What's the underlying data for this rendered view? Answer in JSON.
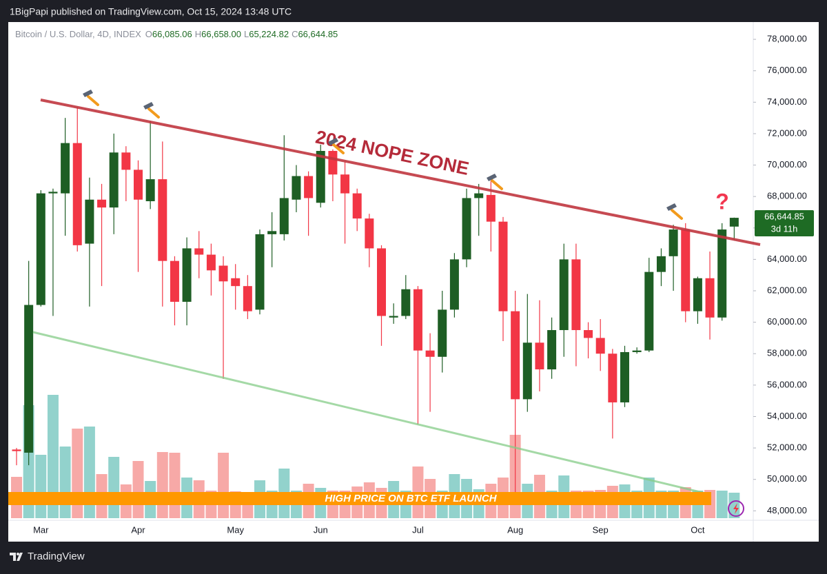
{
  "header": {
    "published": "1BigPapi published on TradingView.com, Oct 15, 2024 13:48 UTC"
  },
  "chart_data": {
    "type": "candlestick",
    "title": "Bitcoin / U.S. Dollar, 4D, INDEX",
    "ohlc_legend": [
      {
        "label": "O",
        "value": "66,085.06"
      },
      {
        "label": "H",
        "value": "66,658.00"
      },
      {
        "label": "L",
        "value": "65,224.82"
      },
      {
        "label": "C",
        "value": "66,644.85"
      }
    ],
    "categories": [
      null,
      null,
      "Mar",
      null,
      null,
      null,
      null,
      null,
      null,
      null,
      "Apr",
      null,
      null,
      null,
      null,
      null,
      null,
      null,
      "May",
      null,
      null,
      null,
      null,
      null,
      null,
      "Jun",
      null,
      null,
      null,
      null,
      null,
      null,
      null,
      "Jul",
      null,
      null,
      null,
      null,
      null,
      null,
      null,
      "Aug",
      null,
      null,
      null,
      null,
      null,
      null,
      "Sep",
      null,
      null,
      null,
      null,
      null,
      null,
      null,
      "Oct",
      null,
      null,
      null
    ],
    "open": [
      51900,
      51700,
      61100,
      68200,
      68200,
      71400,
      65000,
      67800,
      67300,
      70800,
      69700,
      67700,
      69100,
      63900,
      61300,
      64700,
      64300,
      63600,
      62800,
      62300,
      60800,
      65600,
      65600,
      67800,
      69300,
      67600,
      70900,
      69400,
      68200,
      66600,
      64700,
      60300,
      60400,
      62100,
      58200,
      57800,
      60800,
      64000,
      67900,
      68100,
      66400,
      60700,
      55100,
      58700,
      57000,
      59500,
      64000,
      59500,
      59000,
      58000,
      54900,
      58100,
      58200,
      63200,
      64200,
      65900,
      60700,
      62800,
      60300,
      66085.06
    ],
    "high": [
      52000,
      63900,
      68400,
      68500,
      73000,
      73700,
      69200,
      68800,
      72000,
      71200,
      70300,
      72800,
      71500,
      64200,
      65400,
      65800,
      65000,
      64200,
      63700,
      63000,
      65900,
      67000,
      71900,
      70000,
      69600,
      71300,
      71000,
      70200,
      68500,
      66900,
      64900,
      61200,
      63000,
      62300,
      59300,
      62000,
      64400,
      68500,
      68800,
      69000,
      66700,
      62000,
      61800,
      61400,
      60300,
      65000,
      65000,
      60000,
      60200,
      58300,
      58500,
      58400,
      64100,
      64700,
      66200,
      66300,
      62900,
      64500,
      66300,
      66658
    ],
    "low": [
      50900,
      50900,
      61000,
      60400,
      65500,
      64500,
      61000,
      62300,
      65600,
      67700,
      63200,
      67200,
      61000,
      59800,
      59800,
      62800,
      61700,
      56400,
      60800,
      60200,
      60500,
      63500,
      65200,
      67000,
      65500,
      67300,
      67700,
      65000,
      65800,
      63500,
      58500,
      59900,
      60200,
      53500,
      54300,
      56800,
      60300,
      63500,
      65500,
      64500,
      58800,
      49000,
      54300,
      55600,
      56400,
      57800,
      57200,
      57700,
      56900,
      52600,
      54600,
      58000,
      58100,
      62300,
      62000,
      60000,
      59900,
      58900,
      60100,
      65224.82
    ],
    "close": [
      51800,
      61100,
      68200,
      68300,
      71400,
      64900,
      67800,
      67300,
      70800,
      69700,
      67800,
      69100,
      63900,
      61300,
      64700,
      64300,
      63300,
      62600,
      62300,
      60700,
      65600,
      65800,
      67900,
      69300,
      67900,
      70900,
      69400,
      68200,
      66600,
      64700,
      60400,
      60400,
      62100,
      58200,
      57800,
      60800,
      64000,
      67900,
      68200,
      66400,
      60700,
      55100,
      58700,
      57000,
      59500,
      64000,
      59500,
      59000,
      58000,
      54900,
      58100,
      58200,
      63200,
      64200,
      65900,
      60700,
      62800,
      60300,
      65900,
      66644.85
    ],
    "volume": [
      60,
      164,
      92,
      179,
      104,
      130,
      133,
      64,
      89,
      49,
      83,
      54,
      96,
      95,
      59,
      55,
      40,
      95,
      39,
      38,
      55,
      40,
      72,
      40,
      50,
      44,
      40,
      40,
      46,
      52,
      44,
      54,
      40,
      75,
      57,
      40,
      64,
      57,
      42,
      50,
      59,
      121,
      50,
      63,
      40,
      62,
      40,
      40,
      41,
      47,
      49,
      40,
      59,
      40,
      40,
      45,
      40,
      41,
      40,
      37
    ],
    "up_color": "#1e5e24",
    "down_color": "#f23645",
    "volume_up_color": "#92d2cc",
    "volume_down_color": "#f7a9a7",
    "ylim": [
      47400,
      79100
    ],
    "yticks": [
      {
        "value": 48000,
        "label": "48,000.00"
      },
      {
        "value": 50000,
        "label": "50,000.00"
      },
      {
        "value": 52000,
        "label": "52,000.00"
      },
      {
        "value": 54000,
        "label": "54,000.00"
      },
      {
        "value": 56000,
        "label": "56,000.00"
      },
      {
        "value": 58000,
        "label": "58,000.00"
      },
      {
        "value": 60000,
        "label": "60,000.00"
      },
      {
        "value": 62000,
        "label": "62,000.00"
      },
      {
        "value": 64000,
        "label": "64,000.00"
      },
      {
        "value": 66000,
        "label": "66,000.00"
      },
      {
        "value": 68000,
        "label": "68,000.00"
      },
      {
        "value": 70000,
        "label": "70,000.00"
      },
      {
        "value": 72000,
        "label": "72,000.00"
      },
      {
        "value": 74000,
        "label": "74,000.00"
      },
      {
        "value": 76000,
        "label": "76,000.00"
      },
      {
        "value": 78000,
        "label": "78,000.00"
      }
    ],
    "grid": false,
    "last_price_label": "66,644.85",
    "countdown": "3d 11h",
    "annotations": {
      "zone": "2024 NOPE ZONE",
      "question": "?",
      "banner": "HIGH PRICE ON BTC ETF LAUNCH"
    }
  },
  "footer": {
    "brand": "TradingView"
  }
}
